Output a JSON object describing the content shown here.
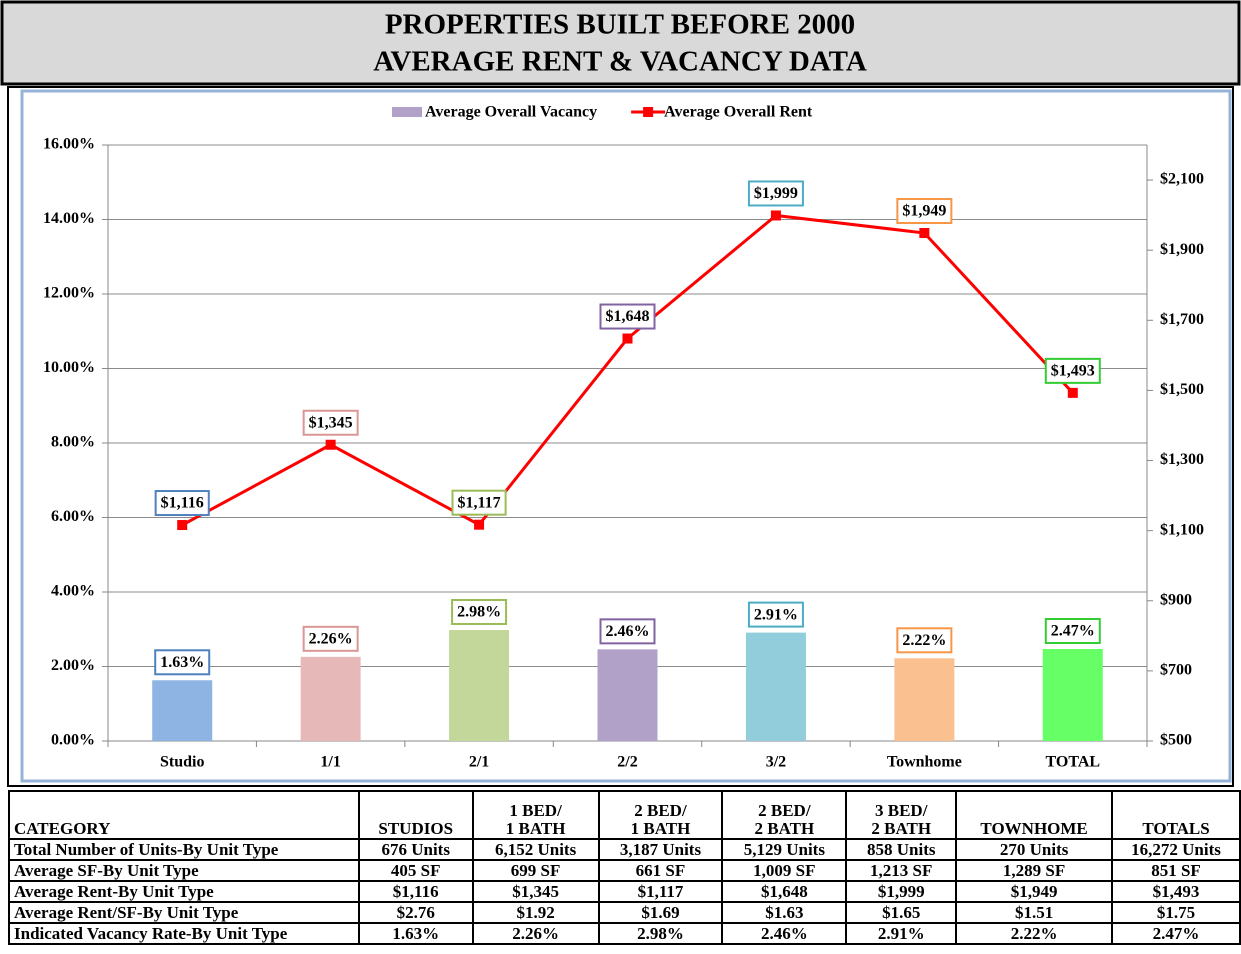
{
  "title_lines": [
    "PROPERTIES BUILT BEFORE 2000",
    "AVERAGE RENT & VACANCY DATA"
  ],
  "chart_data": {
    "type": "bar",
    "categories": [
      "Studio",
      "1/1",
      "2/1",
      "2/2",
      "3/2",
      "Townhome",
      "TOTAL"
    ],
    "ylim": [
      0,
      16
    ],
    "yticks": [
      {
        "value": 0,
        "label": "0.00%"
      },
      {
        "value": 2,
        "label": "2.00%"
      },
      {
        "value": 4,
        "label": "4.00%"
      },
      {
        "value": 6,
        "label": "6.00%"
      },
      {
        "value": 8,
        "label": "8.00%"
      },
      {
        "value": 10,
        "label": "10.00%"
      },
      {
        "value": 12,
        "label": "12.00%"
      },
      {
        "value": 14,
        "label": "14.00%"
      },
      {
        "value": 16,
        "label": "16.00%"
      }
    ],
    "y2lim": [
      500,
      2200
    ],
    "y2ticks": [
      {
        "value": 500,
        "label": "$500"
      },
      {
        "value": 700,
        "label": "$700"
      },
      {
        "value": 900,
        "label": "$900"
      },
      {
        "value": 1100,
        "label": "$1,100"
      },
      {
        "value": 1300,
        "label": "$1,300"
      },
      {
        "value": 1500,
        "label": "$1,500"
      },
      {
        "value": 1700,
        "label": "$1,700"
      },
      {
        "value": 1900,
        "label": "$1,900"
      },
      {
        "value": 2100,
        "label": "$2,100"
      }
    ],
    "grid": true,
    "legend": "top",
    "label_colors": [
      "#4f81bd",
      "#d99694",
      "#9bbb59",
      "#8064a2",
      "#4bacc6",
      "#f79646",
      "#33cc33"
    ],
    "series": [
      {
        "name": "Average Overall Vacancy",
        "type": "bar",
        "color": "#b1a0c7",
        "colors": [
          "#8db4e2",
          "#e6b9b8",
          "#c4d79b",
          "#b1a0c7",
          "#92cddc",
          "#fac090",
          "#66ff66"
        ],
        "values": [
          1.63,
          2.26,
          2.98,
          2.46,
          2.91,
          2.22,
          2.47
        ],
        "value_labels": [
          "1.63%",
          "2.26%",
          "2.98%",
          "2.46%",
          "2.91%",
          "2.22%",
          "2.47%"
        ]
      },
      {
        "name": "Average Overall Rent",
        "type": "line",
        "color": "#ff0000",
        "axis": "y2",
        "values": [
          1116,
          1345,
          1117,
          1648,
          1999,
          1949,
          1493
        ],
        "value_labels": [
          "$1,116",
          "$1,345",
          "$1,117",
          "$1,648",
          "$1,999",
          "$1,949",
          "$1,493"
        ]
      }
    ]
  },
  "table": {
    "header": [
      [
        "CATEGORY"
      ],
      [
        "STUDIOS"
      ],
      [
        "1 BED/",
        "1 BATH"
      ],
      [
        "2 BED/",
        "1 BATH"
      ],
      [
        "2 BED/",
        "2 BATH"
      ],
      [
        "3 BED/",
        "2 BATH"
      ],
      [
        "TOWNHOME"
      ],
      [
        "TOTALS"
      ]
    ],
    "rows": [
      [
        "Total Number of Units-By Unit Type",
        "676 Units",
        "6,152 Units",
        "3,187 Units",
        "5,129 Units",
        "858 Units",
        "270 Units",
        "16,272 Units"
      ],
      [
        "Average SF-By Unit Type",
        "405 SF",
        "699 SF",
        "661 SF",
        "1,009 SF",
        "1,213 SF",
        "1,289 SF",
        "851 SF"
      ],
      [
        "Average Rent-By Unit Type",
        "$1,116",
        "$1,345",
        "$1,117",
        "$1,648",
        "$1,999",
        "$1,949",
        "$1,493"
      ],
      [
        "Average Rent/SF-By Unit Type",
        "$2.76",
        "$1.92",
        "$1.69",
        "$1.63",
        "$1.65",
        "$1.51",
        "$1.75"
      ],
      [
        "Indicated Vacancy Rate-By Unit Type",
        "1.63%",
        "2.26%",
        "2.98%",
        "2.46%",
        "2.91%",
        "2.22%",
        "2.47%"
      ]
    ]
  }
}
